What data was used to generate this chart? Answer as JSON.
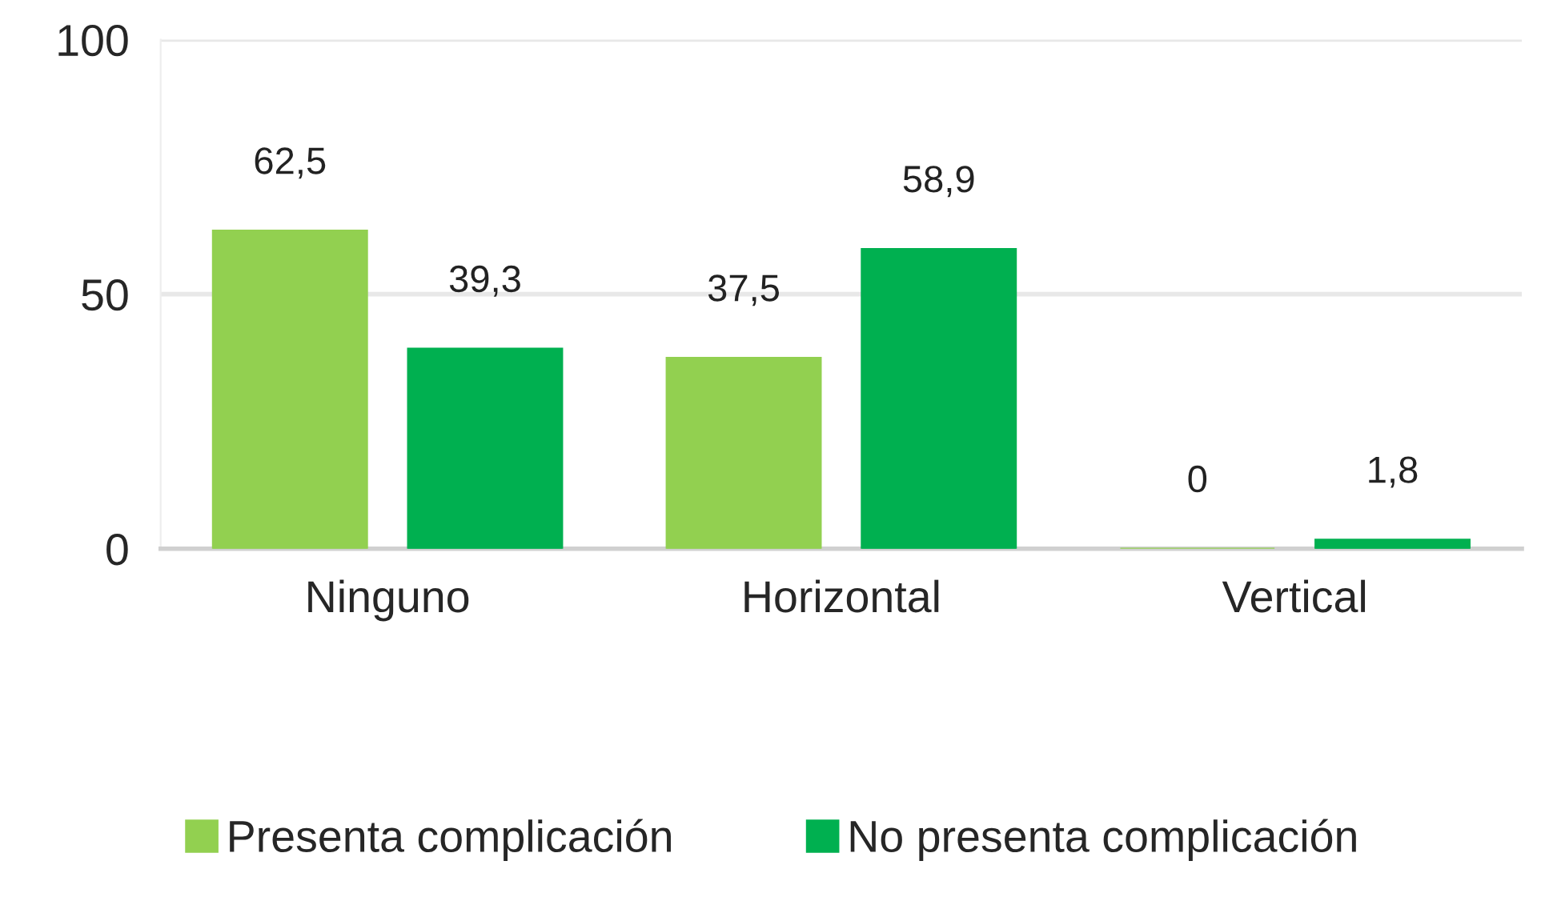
{
  "chart_data": {
    "type": "bar",
    "categories": [
      "Ninguno",
      "Horizontal",
      "Vertical"
    ],
    "series": [
      {
        "name": "Presenta complicación",
        "color": "#92d050",
        "values": [
          62.5,
          37.5,
          0
        ],
        "value_labels": [
          "62,5",
          "37,5",
          "0"
        ]
      },
      {
        "name": "No presenta complicación",
        "color": "#00b050",
        "values": [
          39.3,
          58.9,
          1.8
        ],
        "value_labels": [
          "39,3",
          "58,9",
          "1,8"
        ]
      }
    ],
    "ylim": [
      0,
      100
    ],
    "yticks": [
      0,
      50,
      100
    ],
    "grid": "y",
    "legend": "bottom"
  }
}
